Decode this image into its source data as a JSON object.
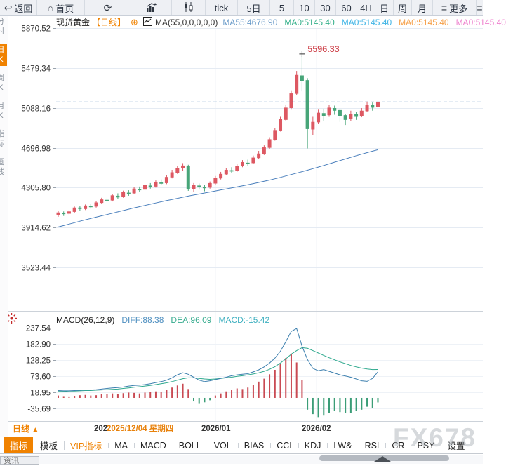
{
  "toolbar": {
    "items": [
      {
        "label": "返回",
        "icon": "back-arrow-icon",
        "w": 52
      },
      {
        "label": "首页",
        "icon": "home-icon",
        "w": 68
      },
      {
        "label": "",
        "icon": "refresh-icon",
        "w": 66
      },
      {
        "label": "",
        "icon": "bar-chart-icon",
        "w": 58
      },
      {
        "label": "",
        "icon": "candlestick-icon",
        "w": 48
      },
      {
        "label": "tick",
        "icon": "",
        "w": 46
      },
      {
        "label": "5日",
        "icon": "",
        "w": 46
      },
      {
        "label": "5",
        "icon": "",
        "w": 34
      },
      {
        "label": "10",
        "icon": "",
        "w": 30
      },
      {
        "label": "30",
        "icon": "",
        "w": 30
      },
      {
        "label": "60",
        "icon": "",
        "w": 30
      },
      {
        "label": "4H",
        "icon": "",
        "w": 26
      },
      {
        "label": "日",
        "icon": "",
        "w": 26
      },
      {
        "label": "周",
        "icon": "",
        "w": 26
      },
      {
        "label": "月",
        "icon": "",
        "w": 30
      },
      {
        "label": "更多",
        "icon": "menu-icon",
        "w": 62
      },
      {
        "label": "",
        "icon": "menu-icon",
        "w": 10
      }
    ]
  },
  "sidebar": {
    "items": [
      {
        "label": "分时",
        "active": false
      },
      {
        "label": "日K",
        "active": true
      },
      {
        "label": "周K",
        "active": false
      },
      {
        "label": "月K",
        "active": false
      },
      {
        "label": "指标",
        "active": false
      },
      {
        "label": "画线",
        "active": false
      }
    ]
  },
  "header": {
    "symbol": "现货黄金",
    "period_tag": "【日线】",
    "plus_icon": "⊕",
    "ma_settings": "MA(55,0,0,0,0,0)",
    "legend": [
      {
        "text": "MA55:4676.90",
        "color": "#6a9bc9"
      },
      {
        "text": "MA0:5145.40",
        "color": "#35b08b"
      },
      {
        "text": "MA0:5145.40",
        "color": "#41b5e6"
      },
      {
        "text": "MA0:5145.40",
        "color": "#f6a14b"
      },
      {
        "text": "MA0:5145.40",
        "color": "#ef83cf"
      }
    ]
  },
  "macd_header": {
    "title": "MACD(26,12,9)",
    "diff": {
      "text": "DIFF:88.38",
      "color": "#4e8fc0"
    },
    "dea": {
      "text": "DEA:96.09",
      "color": "#36ab8e"
    },
    "macd": {
      "text": "MACD:-15.42",
      "color": "#3fb0c0"
    }
  },
  "footer": {
    "period_label": "日线",
    "period_arrow": "▲",
    "watermark": "FX678",
    "partial_tab": "资讯"
  },
  "tabs": {
    "items": [
      {
        "label": "指标",
        "active": true,
        "vip": false
      },
      {
        "label": "模板",
        "active": false,
        "vip": false
      },
      {
        "label": "VIP指标",
        "active": false,
        "vip": true
      },
      {
        "label": "MA",
        "active": false,
        "vip": false
      },
      {
        "label": "MACD",
        "active": false,
        "vip": false
      },
      {
        "label": "BOLL",
        "active": false,
        "vip": false
      },
      {
        "label": "VOL",
        "active": false,
        "vip": false
      },
      {
        "label": "BIAS",
        "active": false,
        "vip": false
      },
      {
        "label": "CCI",
        "active": false,
        "vip": false
      },
      {
        "label": "KDJ",
        "active": false,
        "vip": false
      },
      {
        "label": "LW&",
        "active": false,
        "vip": false
      },
      {
        "label": "RSI",
        "active": false,
        "vip": false
      },
      {
        "label": "CR",
        "active": false,
        "vip": false
      },
      {
        "label": "PSY",
        "active": false,
        "vip": false
      },
      {
        "label": "设置",
        "active": false,
        "vip": false
      }
    ]
  },
  "colors": {
    "up_candle": "#dd5862",
    "down_candle": "#47a578",
    "ma55_line": "#4a7fbc",
    "price_dashed_line": "#2e6da4",
    "diff_line": "#3c7fae",
    "dea_line": "#2fa98e",
    "hist_up": "#c94a53",
    "hist_down": "#3b9d77",
    "accent_orange": "#f08200",
    "annotation_red": "#d04a52",
    "grid": "#e5ebf3",
    "axis_text": "#333333"
  },
  "chart_data": [
    {
      "type": "candlestick",
      "title": "现货黄金 日线",
      "y_ticks": [
        5870.52,
        5479.34,
        5088.16,
        4696.98,
        4305.8,
        3914.62,
        3523.44
      ],
      "price_line": 5145.4,
      "high_annotation": {
        "value": "5596.33",
        "index": 45
      },
      "x_labels": [
        {
          "text": "202",
          "color": "#333333",
          "x": 134
        },
        {
          "text": "2025/12/04 星期四",
          "color": "#e8820c",
          "x": 152
        },
        {
          "text": "2026/01",
          "color": "#333333",
          "x": 287
        },
        {
          "text": "2026/02",
          "color": "#333333",
          "x": 430
        }
      ],
      "candles": [
        [
          4040,
          4075,
          4020,
          4062
        ],
        [
          4058,
          4072,
          4028,
          4046
        ],
        [
          4050,
          4086,
          4036,
          4072
        ],
        [
          4068,
          4120,
          4056,
          4110
        ],
        [
          4110,
          4126,
          4080,
          4096
        ],
        [
          4096,
          4140,
          4086,
          4130
        ],
        [
          4126,
          4146,
          4100,
          4114
        ],
        [
          4120,
          4176,
          4110,
          4160
        ],
        [
          4156,
          4206,
          4146,
          4190
        ],
        [
          4186,
          4210,
          4160,
          4174
        ],
        [
          4180,
          4246,
          4170,
          4230
        ],
        [
          4226,
          4250,
          4196,
          4210
        ],
        [
          4216,
          4276,
          4206,
          4260
        ],
        [
          4256,
          4280,
          4226,
          4244
        ],
        [
          4250,
          4310,
          4240,
          4296
        ],
        [
          4290,
          4316,
          4260,
          4280
        ],
        [
          4286,
          4346,
          4276,
          4330
        ],
        [
          4326,
          4350,
          4296,
          4310
        ],
        [
          4316,
          4376,
          4306,
          4360
        ],
        [
          4356,
          4386,
          4330,
          4344
        ],
        [
          4350,
          4430,
          4340,
          4410
        ],
        [
          4406,
          4480,
          4396,
          4456
        ],
        [
          4450,
          4520,
          4440,
          4500
        ],
        [
          4496,
          4546,
          4470,
          4522
        ],
        [
          4520,
          4530,
          4274,
          4290
        ],
        [
          4294,
          4350,
          4260,
          4330
        ],
        [
          4326,
          4346,
          4286,
          4310
        ],
        [
          4314,
          4330,
          4270,
          4300
        ],
        [
          4306,
          4366,
          4296,
          4350
        ],
        [
          4346,
          4420,
          4336,
          4400
        ],
        [
          4396,
          4460,
          4386,
          4440
        ],
        [
          4436,
          4500,
          4426,
          4480
        ],
        [
          4476,
          4506,
          4446,
          4464
        ],
        [
          4470,
          4540,
          4460,
          4520
        ],
        [
          4516,
          4576,
          4506,
          4556
        ],
        [
          4550,
          4580,
          4520,
          4540
        ],
        [
          4546,
          4620,
          4536,
          4600
        ],
        [
          4596,
          4666,
          4586,
          4640
        ],
        [
          4636,
          4720,
          4626,
          4700
        ],
        [
          4696,
          4800,
          4686,
          4780
        ],
        [
          4776,
          4890,
          4766,
          4870
        ],
        [
          4866,
          5000,
          4856,
          4976
        ],
        [
          4970,
          5120,
          4960,
          5090
        ],
        [
          5086,
          5260,
          5070,
          5230
        ],
        [
          5226,
          5450,
          5210,
          5411
        ],
        [
          5406,
          5596,
          5250,
          5350
        ],
        [
          5360,
          5380,
          4690,
          4880
        ],
        [
          4876,
          5000,
          4820,
          4950
        ],
        [
          4946,
          5070,
          4930,
          5040
        ],
        [
          5036,
          5080,
          4960,
          5010
        ],
        [
          5016,
          5120,
          5000,
          5090
        ],
        [
          5086,
          5110,
          5020,
          5060
        ],
        [
          5066,
          5080,
          4950,
          5010
        ],
        [
          5016,
          5030,
          4920,
          4970
        ],
        [
          4976,
          5060,
          4956,
          5030
        ],
        [
          5026,
          5050,
          4970,
          5000
        ],
        [
          5006,
          5086,
          4996,
          5060
        ],
        [
          5056,
          5150,
          5046,
          5120
        ],
        [
          5116,
          5140,
          5060,
          5090
        ],
        [
          5096,
          5165,
          5086,
          5145
        ]
      ],
      "ma55": [
        3920,
        3934,
        3948,
        3962,
        3976,
        3990,
        4003,
        4016,
        4029,
        4042,
        4055,
        4068,
        4081,
        4094,
        4107,
        4119,
        4131,
        4143,
        4155,
        4167,
        4179,
        4190,
        4201,
        4212,
        4223,
        4233,
        4243,
        4253,
        4263,
        4273,
        4283,
        4293,
        4303,
        4313,
        4323,
        4334,
        4345,
        4356,
        4368,
        4380,
        4393,
        4406,
        4420,
        4434,
        4448,
        4462,
        4477,
        4492,
        4507,
        4523,
        4539,
        4555,
        4571,
        4587,
        4603,
        4619,
        4634,
        4649,
        4663,
        4677
      ]
    },
    {
      "type": "macd",
      "y_ticks": [
        237.54,
        182.9,
        128.25,
        73.6,
        18.95,
        -35.69
      ],
      "diff": [
        25,
        24,
        24,
        25,
        26,
        27,
        27,
        28,
        30,
        32,
        34,
        35,
        37,
        40,
        42,
        43,
        45,
        48,
        52,
        55,
        60,
        68,
        78,
        85,
        80,
        70,
        60,
        55,
        58,
        62,
        66,
        70,
        75,
        78,
        80,
        82,
        88,
        95,
        105,
        118,
        135,
        158,
        190,
        225,
        235,
        175,
        130,
        100,
        92,
        96,
        90,
        84,
        78,
        74,
        70,
        64,
        58,
        56,
        66,
        88.38
      ],
      "dea": [
        22,
        22,
        23,
        23,
        24,
        25,
        25,
        26,
        27,
        28,
        29,
        30,
        32,
        34,
        36,
        38,
        40,
        42,
        45,
        48,
        51,
        55,
        60,
        65,
        68,
        68,
        66,
        64,
        63,
        64,
        66,
        68,
        70,
        73,
        75,
        78,
        81,
        85,
        90,
        97,
        106,
        118,
        132,
        148,
        160,
        170,
        168,
        160,
        152,
        144,
        136,
        129,
        122,
        116,
        110,
        105,
        101,
        98,
        96,
        96.09
      ],
      "hist": [
        8,
        6,
        5,
        7,
        9,
        10,
        8,
        9,
        12,
        14,
        15,
        13,
        16,
        18,
        17,
        15,
        18,
        20,
        22,
        20,
        28,
        35,
        42,
        48,
        30,
        -12,
        -18,
        -15,
        -8,
        8,
        15,
        22,
        28,
        32,
        30,
        35,
        45,
        55,
        65,
        80,
        95,
        115,
        135,
        150,
        120,
        60,
        -40,
        -55,
        -65,
        -60,
        -50,
        -45,
        -48,
        -52,
        -50,
        -45,
        -40,
        -30,
        -35,
        -15.42
      ]
    }
  ]
}
